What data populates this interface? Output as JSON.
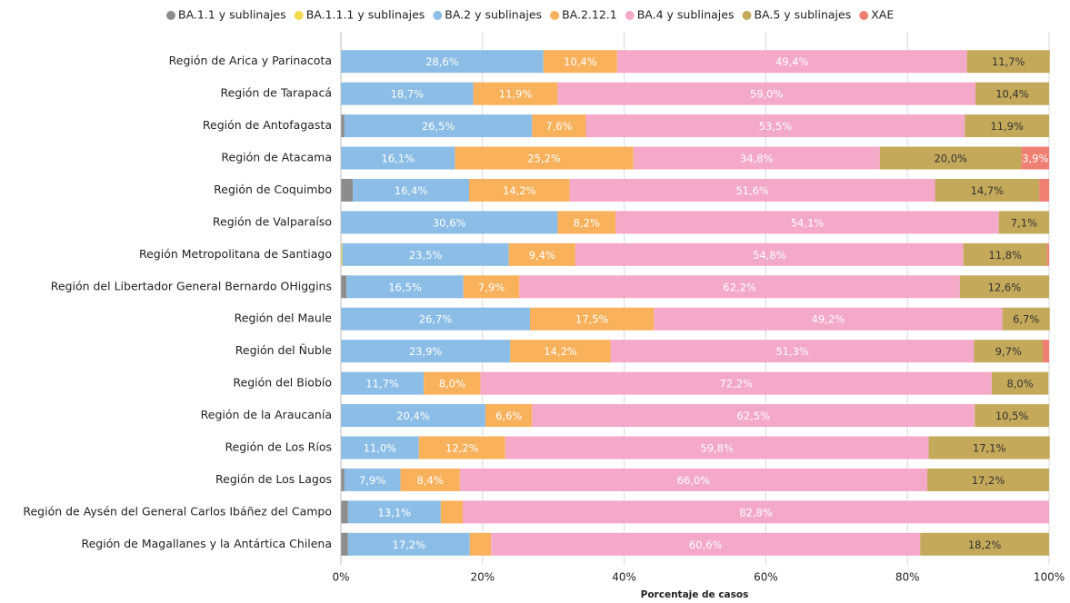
{
  "chart_data": {
    "type": "stacked_barh",
    "categories": [
      "Región de Arica y Parinacota",
      "Región de Tarapacá",
      "Región de Antofagasta",
      "Región de Atacama",
      "Región de Coquimbo",
      "Región de Valparaíso",
      "Región Metropolitana de Santiago",
      "Región del Libertador General Bernardo OHiggins",
      "Región del Maule",
      "Región del Ñuble",
      "Región del Biobío",
      "Región de la Araucanía",
      "Región de Los Ríos",
      "Región de Los Lagos",
      "Región de Aysén del General Carlos Ibáñez del Campo",
      "Región de Magallanes y la Antártica Chilena"
    ],
    "series": [
      {
        "name": "BA.1.1 y sublinajes",
        "color": "#8c8c8c",
        "values": [
          0,
          0,
          0.5,
          0,
          1.7,
          0,
          0,
          0.8,
          0,
          0,
          0,
          0,
          0,
          0.5,
          1.0,
          1.0
        ],
        "value_labels": [
          null,
          null,
          null,
          null,
          null,
          null,
          null,
          null,
          null,
          null,
          null,
          null,
          null,
          null,
          null,
          null
        ]
      },
      {
        "name": "BA.1.1.1 y sublinajes",
        "color": "#f2d94e",
        "values": [
          0,
          0,
          0,
          0,
          0,
          0,
          0.2,
          0,
          0,
          0,
          0,
          0,
          0,
          0,
          0,
          0
        ],
        "value_labels": [
          null,
          null,
          null,
          null,
          null,
          null,
          null,
          null,
          null,
          null,
          null,
          null,
          null,
          null,
          null,
          null
        ]
      },
      {
        "name": "BA.2 y sublinajes",
        "color": "#8bbde6",
        "values": [
          28.6,
          18.7,
          26.5,
          16.1,
          16.4,
          30.6,
          23.5,
          16.5,
          26.7,
          23.9,
          11.7,
          20.4,
          11.0,
          7.9,
          13.1,
          17.2
        ],
        "value_labels": [
          "28,6%",
          "18,7%",
          "26,5%",
          "16,1%",
          "16,4%",
          "30,6%",
          "23,5%",
          "16,5%",
          "26,7%",
          "23,9%",
          "11,7%",
          "20,4%",
          "11,0%",
          "7,9%",
          "13,1%",
          "17,2%"
        ]
      },
      {
        "name": "BA.2.12.1",
        "color": "#f9b15c",
        "values": [
          10.4,
          11.9,
          7.6,
          25.2,
          14.2,
          8.2,
          9.4,
          7.9,
          17.5,
          14.2,
          8.0,
          6.6,
          12.2,
          8.4,
          3.1,
          3.0
        ],
        "value_labels": [
          "10,4%",
          "11,9%",
          "7,6%",
          "25,2%",
          "14,2%",
          "8,2%",
          "9,4%",
          "7,9%",
          "17,5%",
          "14,2%",
          "8,0%",
          "6,6%",
          "12,2%",
          "8,4%",
          null,
          null
        ]
      },
      {
        "name": "BA.4 y sublinajes",
        "color": "#f4a9c9",
        "values": [
          49.4,
          59.0,
          53.5,
          34.8,
          51.6,
          54.1,
          54.8,
          62.2,
          49.2,
          51.3,
          72.2,
          62.5,
          59.8,
          66.0,
          82.8,
          60.6
        ],
        "value_labels": [
          "49,4%",
          "59,0%",
          "53,5%",
          "34,8%",
          "51,6%",
          "54,1%",
          "54,8%",
          "62,2%",
          "49,2%",
          "51,3%",
          "72,2%",
          "62,5%",
          "59,8%",
          "66,0%",
          "82,8%",
          "60,6%"
        ]
      },
      {
        "name": "BA.5 y sublinajes",
        "color": "#c4a95a",
        "values": [
          11.7,
          10.4,
          11.9,
          20.0,
          14.7,
          7.1,
          11.8,
          12.6,
          6.7,
          9.7,
          8.0,
          10.5,
          17.1,
          17.2,
          0,
          18.2
        ],
        "value_labels": [
          "11,7%",
          "10,4%",
          "11,9%",
          "20,0%",
          "14,7%",
          "7,1%",
          "11,8%",
          "12,6%",
          "6,7%",
          "9,7%",
          "8,0%",
          "10,5%",
          "17,1%",
          "17,2%",
          null,
          "18,2%"
        ]
      },
      {
        "name": "XAE",
        "color": "#ef7f72",
        "values": [
          0,
          0,
          0,
          3.9,
          1.4,
          0,
          0.3,
          0,
          0,
          0.9,
          0,
          0,
          0,
          0,
          0,
          0
        ],
        "value_labels": [
          null,
          null,
          null,
          "3,9%",
          null,
          null,
          null,
          null,
          null,
          null,
          null,
          null,
          null,
          null,
          null,
          null
        ]
      }
    ],
    "xlabel": "Porcentaje de casos",
    "xlim": [
      0,
      100
    ],
    "xticks": [
      {
        "value": 0,
        "label": "0%"
      },
      {
        "value": 20,
        "label": "20%"
      },
      {
        "value": 40,
        "label": "40%"
      },
      {
        "value": 60,
        "label": "60%"
      },
      {
        "value": 80,
        "label": "80%"
      },
      {
        "value": 100,
        "label": "100%"
      }
    ],
    "grid": true,
    "legend": "top"
  }
}
